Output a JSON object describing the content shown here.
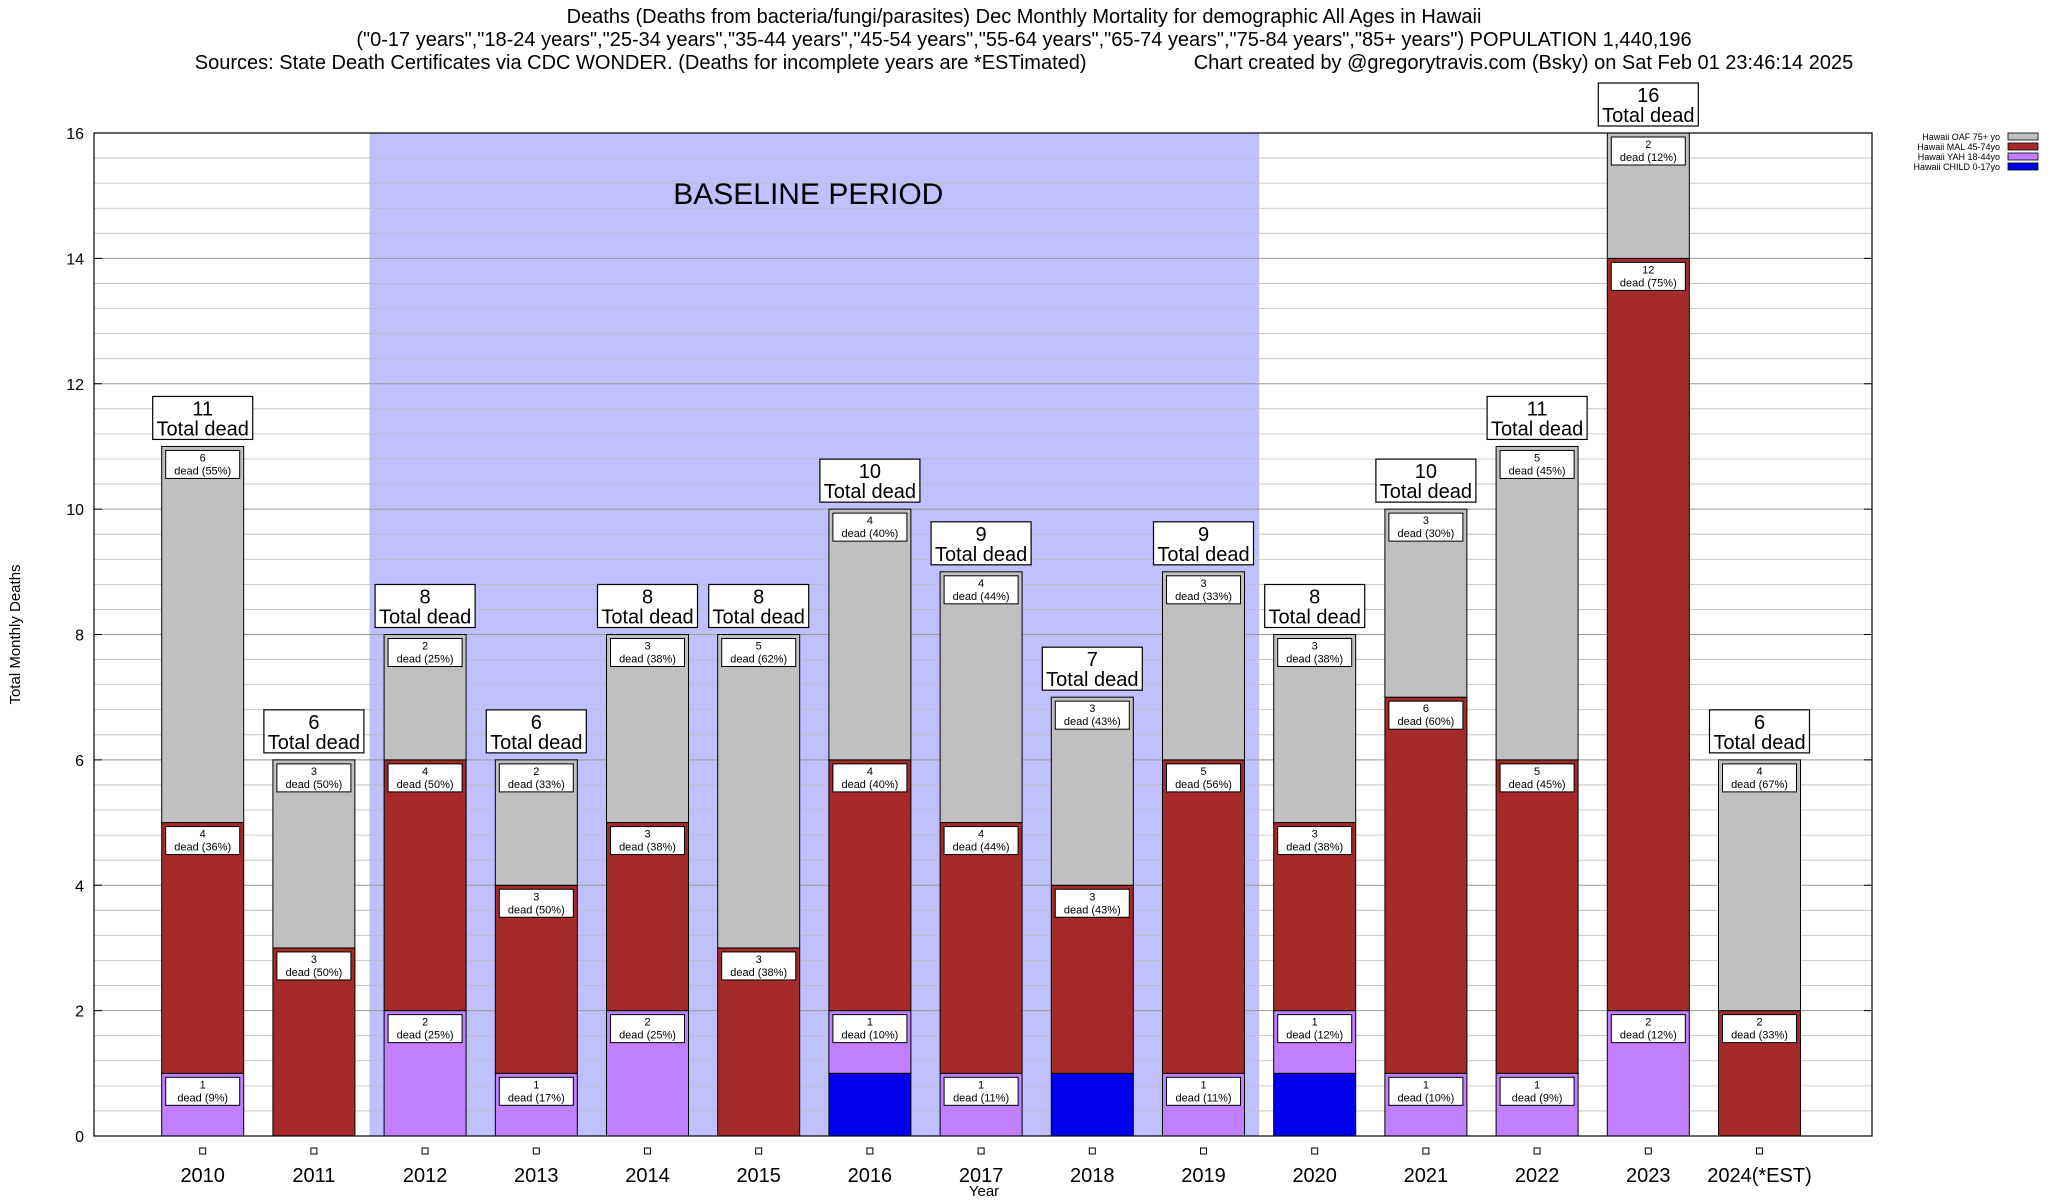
{
  "title": {
    "line1": "Deaths (Deaths from bacteria/fungi/parasites) Dec Monthly Mortality for demographic All Ages in Hawaii",
    "line2": "(\"0-17 years\",\"18-24 years\",\"25-34 years\",\"35-44 years\",\"45-54 years\",\"55-64 years\",\"65-74 years\",\"75-84 years\",\"85+ years\") POPULATION 1,440,196",
    "line3_left": "Sources: State Death Certificates via CDC WONDER. (Deaths for incomplete years are *ESTimated)",
    "line3_right": "Chart created by @gregorytravis.com (Bsky) on Sat Feb 01 23:46:14 2025"
  },
  "chart_data": {
    "type": "bar",
    "stacked": true,
    "xlabel": "Year",
    "ylabel": "Total Monthly Deaths",
    "ylim": [
      0,
      16
    ],
    "yticks": [
      0,
      2,
      4,
      6,
      8,
      10,
      12,
      14,
      16
    ],
    "grid": true,
    "legend_position": "top-right",
    "categories": [
      "2010",
      "2011",
      "2012",
      "2013",
      "2014",
      "2015",
      "2016",
      "2017",
      "2018",
      "2019",
      "2020",
      "2021",
      "2022",
      "2023",
      "2024(*EST)"
    ],
    "baseline_period": {
      "label": "BASELINE PERIOD",
      "start": "2012",
      "end": "2019"
    },
    "series": [
      {
        "name": "Hawaii CHILD 0-17yo",
        "color": "#0000ee",
        "values": [
          0,
          0,
          0,
          0,
          0,
          0,
          1,
          0,
          1,
          0,
          1,
          0,
          0,
          0,
          0
        ],
        "labels": [
          "",
          "",
          "",
          "",
          "",
          "",
          "",
          "",
          "",
          "",
          "",
          "",
          "",
          "",
          ""
        ]
      },
      {
        "name": "Hawaii YAH 18-44yo",
        "color": "#c080ff",
        "values": [
          1,
          0,
          2,
          1,
          2,
          0,
          1,
          1,
          0,
          1,
          1,
          1,
          1,
          2,
          0
        ],
        "labels": [
          "dead (9%)",
          "",
          "dead (25%)",
          "dead (17%)",
          "dead (25%)",
          "",
          "dead (10%)",
          "dead (11%)",
          "",
          "dead (11%)",
          "dead (12%)",
          "dead (10%)",
          "dead (9%)",
          "dead (12%)",
          ""
        ]
      },
      {
        "name": "Hawaii MAL 45-74yo",
        "color": "#a52a2a",
        "values": [
          4,
          3,
          4,
          3,
          3,
          3,
          4,
          4,
          3,
          5,
          3,
          6,
          5,
          12,
          2
        ],
        "labels": [
          "dead (36%)",
          "dead (50%)",
          "dead (50%)",
          "dead (50%)",
          "dead (38%)",
          "dead (38%)",
          "dead (40%)",
          "dead (44%)",
          "dead (43%)",
          "dead (56%)",
          "dead (38%)",
          "dead (60%)",
          "dead (45%)",
          "dead (75%)",
          "dead (33%)"
        ]
      },
      {
        "name": "Hawaii OAF 75+ yo",
        "color": "#c0c0c0",
        "values": [
          6,
          3,
          2,
          2,
          3,
          5,
          4,
          4,
          3,
          3,
          3,
          3,
          5,
          2,
          4
        ],
        "labels": [
          "dead (55%)",
          "dead (50%)",
          "dead (25%)",
          "dead (33%)",
          "dead (38%)",
          "dead (62%)",
          "dead (40%)",
          "dead (44%)",
          "dead (43%)",
          "dead (33%)",
          "dead (38%)",
          "dead (30%)",
          "dead (45%)",
          "dead (12%)",
          "dead (67%)"
        ]
      }
    ],
    "totals": [
      11,
      6,
      8,
      6,
      8,
      8,
      10,
      9,
      7,
      9,
      8,
      10,
      11,
      16,
      6
    ],
    "total_label": "Total dead"
  }
}
